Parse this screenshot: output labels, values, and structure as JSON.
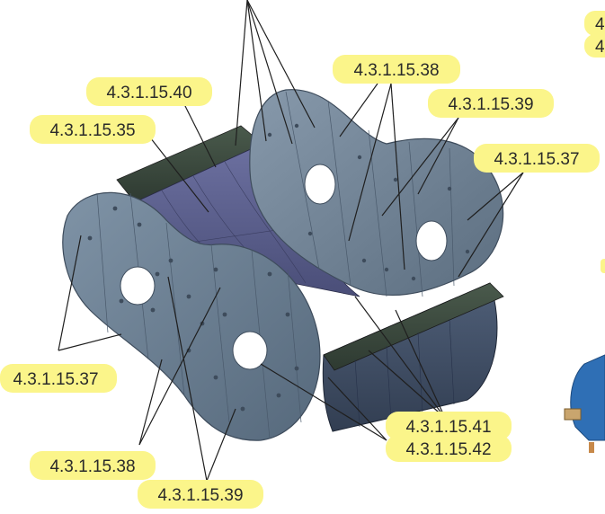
{
  "callouts": [
    {
      "id": "c40",
      "label": "4.3.1.15.40"
    },
    {
      "id": "c35",
      "label": "4.3.1.15.35"
    },
    {
      "id": "c38a",
      "label": "4.3.1.15.38"
    },
    {
      "id": "c39a",
      "label": "4.3.1.15.39"
    },
    {
      "id": "c37a",
      "label": "4.3.1.15.37"
    },
    {
      "id": "c37b",
      "label": "4.3.1.15.37"
    },
    {
      "id": "c41",
      "label": "4.3.1.15.41"
    },
    {
      "id": "c42",
      "label": "4.3.1.15.42"
    },
    {
      "id": "c38b",
      "label": "4.3.1.15.38"
    },
    {
      "id": "c39b",
      "label": "4.3.1.15.39"
    },
    {
      "id": "cTR1",
      "label": "4"
    },
    {
      "id": "cTR2",
      "label": "4"
    }
  ],
  "colors": {
    "callout_fill": "#fbf58a",
    "leader_line": "#1f1f1f",
    "disk_face": "#6e8295",
    "disk_edge": "#3e4c5c",
    "side_rail": "#3d4a3f",
    "floor_panel": "#5a5f85",
    "motor_blue": "#2f6fb5"
  }
}
